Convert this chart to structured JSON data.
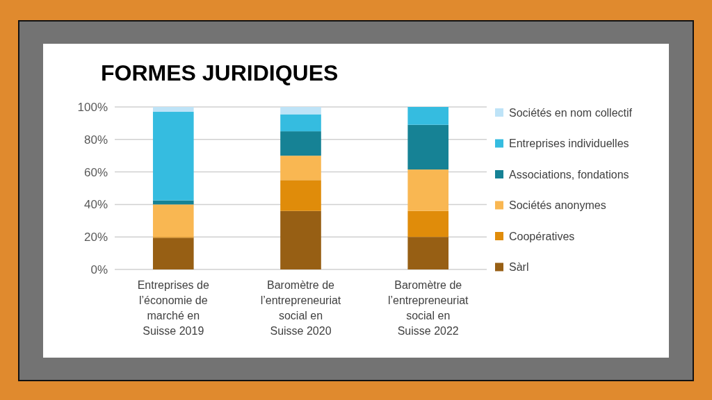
{
  "chart_data": {
    "type": "bar",
    "title": "FORMES JURIDIQUES",
    "categories": [
      "Entreprises de\nl’économie de\nmarché en\nSuisse 2019",
      "Baromètre de\nl’entrepreneuriat\nsocial en\nSuisse 2020",
      "Baromètre de\nl’entrepreneuriat\nsocial en\nSuisse 2022"
    ],
    "stacked": true,
    "series": [
      {
        "name": "Sàrl",
        "color": "#975f14",
        "values": [
          19.5,
          36,
          20
        ]
      },
      {
        "name": "Coopératives",
        "color": "#e08c0a",
        "values": [
          0.5,
          19,
          16
        ]
      },
      {
        "name": "Sociétés anonymes",
        "color": "#f9b752",
        "values": [
          20,
          15,
          25.5
        ]
      },
      {
        "name": "Associations, fondations",
        "color": "#168295",
        "values": [
          2.5,
          15,
          27.5
        ]
      },
      {
        "name": "Entreprises individuelles",
        "color": "#35bce0",
        "values": [
          54.5,
          10.5,
          11
        ]
      },
      {
        "name": "Sociétés en nom collectif",
        "color": "#bee3f7",
        "values": [
          3,
          4.5,
          0
        ]
      }
    ],
    "ylim": [
      0,
      100
    ],
    "yticks": [
      {
        "value": 0,
        "label": "0%"
      },
      {
        "value": 20,
        "label": "20%"
      },
      {
        "value": 40,
        "label": "40%"
      },
      {
        "value": 60,
        "label": "60%"
      },
      {
        "value": 80,
        "label": "80%"
      },
      {
        "value": 100,
        "label": "100%"
      }
    ],
    "grid": "y",
    "legend": "right"
  }
}
